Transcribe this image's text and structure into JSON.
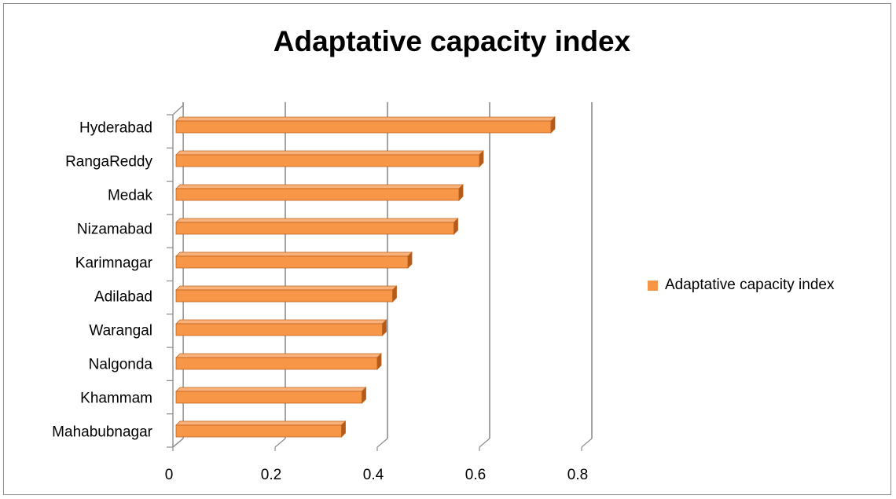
{
  "chart_data": {
    "type": "bar",
    "orientation": "horizontal",
    "title": "Adaptative capacity index",
    "categories": [
      "Hyderabad",
      "RangaReddy",
      "Medak",
      "Nizamabad",
      "Karimnagar",
      "Adilabad",
      "Warangal",
      "Nalgonda",
      "Khammam",
      "Mahabubnagar"
    ],
    "series": [
      {
        "name": "Adaptative capacity index",
        "values": [
          0.74,
          0.6,
          0.56,
          0.55,
          0.46,
          0.43,
          0.41,
          0.4,
          0.37,
          0.33
        ]
      }
    ],
    "xlim": [
      0,
      0.8
    ],
    "xticks": [
      "0",
      "0.2",
      "0.4",
      "0.6",
      "0.8"
    ],
    "grid": true,
    "legend": "right",
    "style_3d": true,
    "colors": {
      "bar": "#f79646",
      "bar_edge": "#c0651f",
      "bar_side": "#b35a1c",
      "grid": "#8c8c8c"
    }
  }
}
